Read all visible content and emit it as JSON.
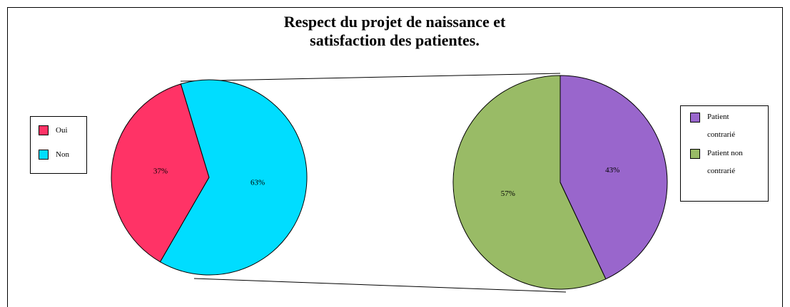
{
  "chart_data": [
    {
      "type": "pie",
      "title": "Respect du projet de naissance et satisfaction des patientes.",
      "categories": [
        "Oui",
        "Non"
      ],
      "values": [
        37,
        63
      ],
      "value_labels": [
        "37%",
        "63%"
      ],
      "colors": [
        "#ff3366",
        "#00ddff"
      ]
    },
    {
      "type": "pie",
      "categories": [
        "Patient contrarié",
        "Patient non contrarié"
      ],
      "values": [
        43,
        57
      ],
      "value_labels": [
        "43%",
        "57%"
      ],
      "colors": [
        "#9966cc",
        "#99bb66"
      ]
    }
  ]
}
